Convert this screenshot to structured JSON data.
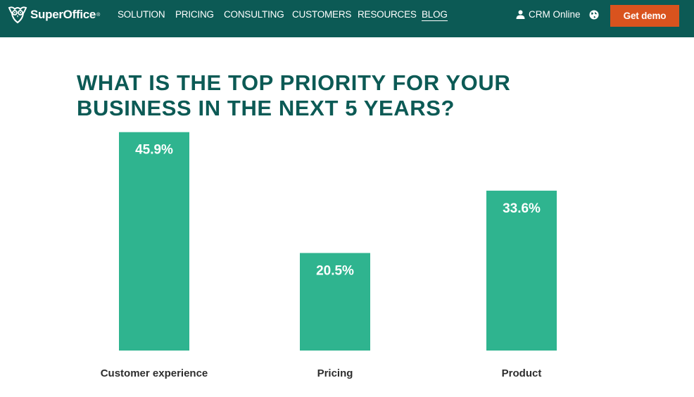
{
  "header": {
    "logo_text": "SuperOffice",
    "logo_mark": "reg",
    "logo_icon": "owl-icon",
    "nav": [
      {
        "label": "SOLUTION",
        "active": false
      },
      {
        "label": "PRICING",
        "active": false
      },
      {
        "label": "CONSULTING",
        "active": false
      },
      {
        "label": "CUSTOMERS",
        "active": false
      },
      {
        "label": "RESOURCES",
        "active": false
      },
      {
        "label": "BLOG",
        "active": true
      }
    ],
    "crm_label": "CRM Online",
    "crm_icon": "user-icon",
    "language_icon": "globe-icon",
    "cta_label": "Get demo"
  },
  "colors": {
    "header_bg": "#0c5a55",
    "cta_bg": "#d9531e",
    "bar": "#2fb48f",
    "title": "#0c5a55",
    "category_label": "#2d2d2d"
  },
  "chart_data": {
    "type": "bar",
    "title": "WHAT IS THE TOP PRIORITY FOR YOUR\nBUSINESS IN THE NEXT 5 YEARS?",
    "categories": [
      "Customer experience",
      "Pricing",
      "Product"
    ],
    "values": [
      45.9,
      20.5,
      33.6
    ],
    "value_labels": [
      "45.9%",
      "20.5%",
      "33.6%"
    ],
    "ylim": [
      0,
      50
    ],
    "grid": false,
    "xlabel": "",
    "ylabel": ""
  }
}
